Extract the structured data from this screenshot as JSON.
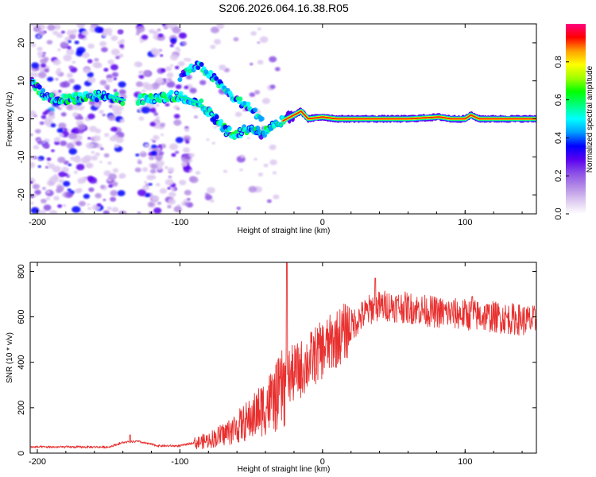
{
  "title": "S206.2026.064.16.38.R05",
  "chart_data": [
    {
      "type": "heatmap",
      "name": "spectrogram",
      "xlabel": "Height of straight line (km)",
      "ylabel": "Frequency (Hz)",
      "xlim": [
        -205,
        150
      ],
      "ylim": [
        -25,
        25
      ],
      "xticks": [
        -200,
        -100,
        0,
        100
      ],
      "yticks": [
        -20,
        -10,
        0,
        10,
        20
      ],
      "colorbar": {
        "label": "Normalized spectral amplitude",
        "range": [
          0,
          1
        ],
        "ticks": [
          "0.0",
          "0.2",
          "0.4",
          "0.6",
          "0.8"
        ],
        "tick_values": [
          0.0,
          0.2,
          0.4,
          0.6,
          0.8
        ],
        "colors": [
          "#ffffff",
          "#dcc8f0",
          "#b48ce6",
          "#8c50e6",
          "#5a00f0",
          "#0000ff",
          "#00a0ff",
          "#00ffff",
          "#00ff80",
          "#00ff00",
          "#a0ff00",
          "#ffff00",
          "#ffa000",
          "#ff0000",
          "#ff0080"
        ]
      },
      "ridge_frequency": {
        "x": [
          -205,
          -195,
          -180,
          -165,
          -150,
          -140,
          -130,
          -115,
          -105,
          -95,
          -85,
          -75,
          -68,
          -60,
          -50,
          -42,
          -36,
          -30,
          -25,
          -20,
          -15,
          -10,
          0,
          10,
          30,
          60,
          82,
          90,
          100,
          104,
          110,
          130,
          150
        ],
        "y": [
          10,
          6,
          5,
          6,
          6,
          5,
          5,
          5.5,
          6,
          5.5,
          4,
          0,
          -3,
          -4,
          -2,
          -4,
          -2,
          -1,
          0,
          1,
          2,
          0,
          0.5,
          0,
          0,
          0,
          0.5,
          0,
          0,
          1,
          0,
          0,
          0
        ]
      },
      "upper_branch": {
        "x": [
          -100,
          -93,
          -87,
          -80,
          -72,
          -64,
          -56,
          -48,
          -42
        ],
        "y": [
          11,
          13,
          14,
          12,
          9,
          6,
          4,
          2,
          -1
        ]
      }
    },
    {
      "type": "line",
      "name": "snr",
      "xlabel": "Height of straight line (km)",
      "ylabel": "SNR (10 * v/v)",
      "xlim": [
        -205,
        150
      ],
      "ylim": [
        0,
        840
      ],
      "xticks": [
        -200,
        -100,
        0,
        100
      ],
      "yticks": [
        0,
        200,
        400,
        600,
        800
      ],
      "color": "#e8302f",
      "trend": {
        "x": [
          -205,
          -150,
          -140,
          -130,
          -115,
          -100,
          -90,
          -80,
          -70,
          -60,
          -50,
          -40,
          -32,
          -25,
          -15,
          -5,
          5,
          15,
          25,
          35,
          45,
          60,
          80,
          100,
          120,
          150
        ],
        "y": [
          25,
          25,
          45,
          50,
          30,
          30,
          45,
          60,
          85,
          120,
          160,
          220,
          260,
          330,
          370,
          430,
          480,
          530,
          590,
          640,
          650,
          640,
          620,
          610,
          600,
          580
        ]
      },
      "peaks": [
        {
          "x": -25,
          "y": 840
        },
        {
          "x": -135,
          "y": 80
        },
        {
          "x": 37,
          "y": 770
        },
        {
          "x": 105,
          "y": 690
        }
      ]
    }
  ]
}
